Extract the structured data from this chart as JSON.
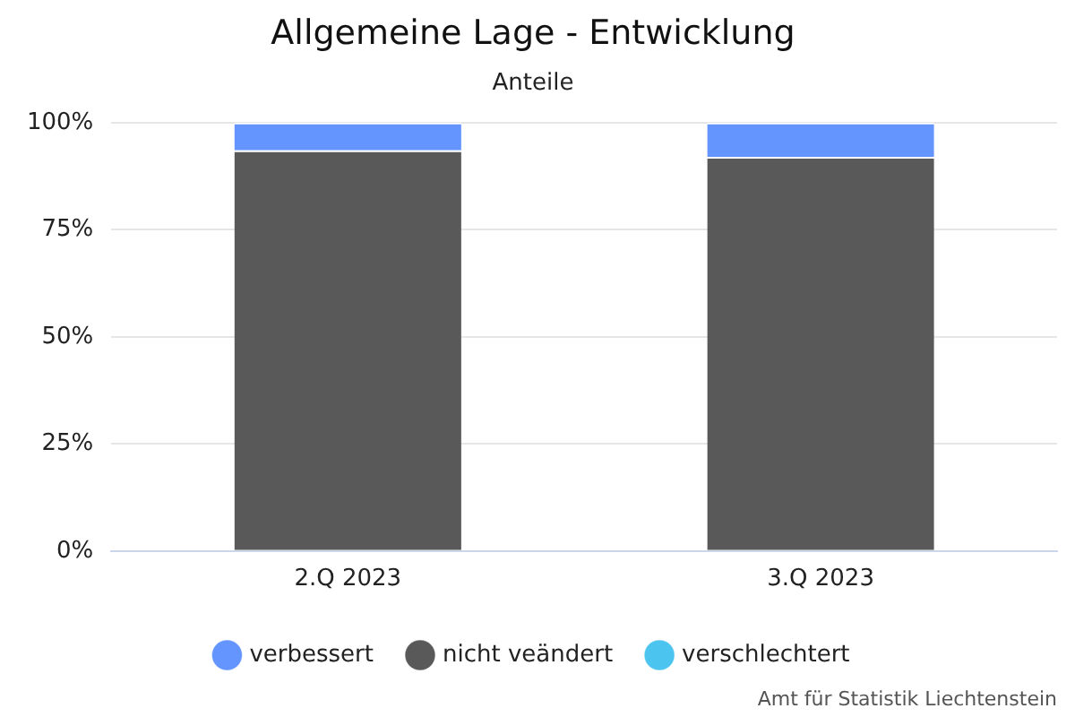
{
  "chart_data": {
    "type": "bar",
    "title": "Allgemeine Lage - Entwicklung",
    "subtitle": "Anteile",
    "categories": [
      "2.Q 2023",
      "3.Q 2023"
    ],
    "stacked": true,
    "series": [
      {
        "name": "verschlechtert",
        "color": "#4bc4f0",
        "values": [
          0,
          0
        ]
      },
      {
        "name": "nicht veändert",
        "color": "#595959",
        "values": [
          93.5,
          92
        ]
      },
      {
        "name": "verbessert",
        "color": "#6495ff",
        "values": [
          6.5,
          8
        ]
      }
    ],
    "ylim": [
      0,
      100
    ],
    "yticks": [
      {
        "value": 0,
        "label": "0%"
      },
      {
        "value": 25,
        "label": "25%"
      },
      {
        "value": 50,
        "label": "50%"
      },
      {
        "value": 75,
        "label": "75%"
      },
      {
        "value": 100,
        "label": "100%"
      }
    ],
    "grid": "y",
    "legend": "bottom",
    "annotations": [
      "Amt für Statistik Liechtenstein"
    ]
  }
}
